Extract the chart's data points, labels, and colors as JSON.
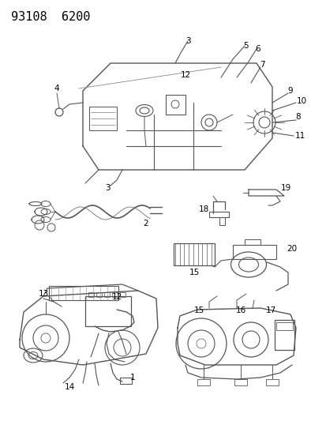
{
  "title": "93108  6200",
  "title_fontsize": 11,
  "background_color": "#ffffff",
  "fig_width": 4.14,
  "fig_height": 5.33,
  "dpi": 100,
  "line_color": "#555555",
  "line_width": 0.7
}
